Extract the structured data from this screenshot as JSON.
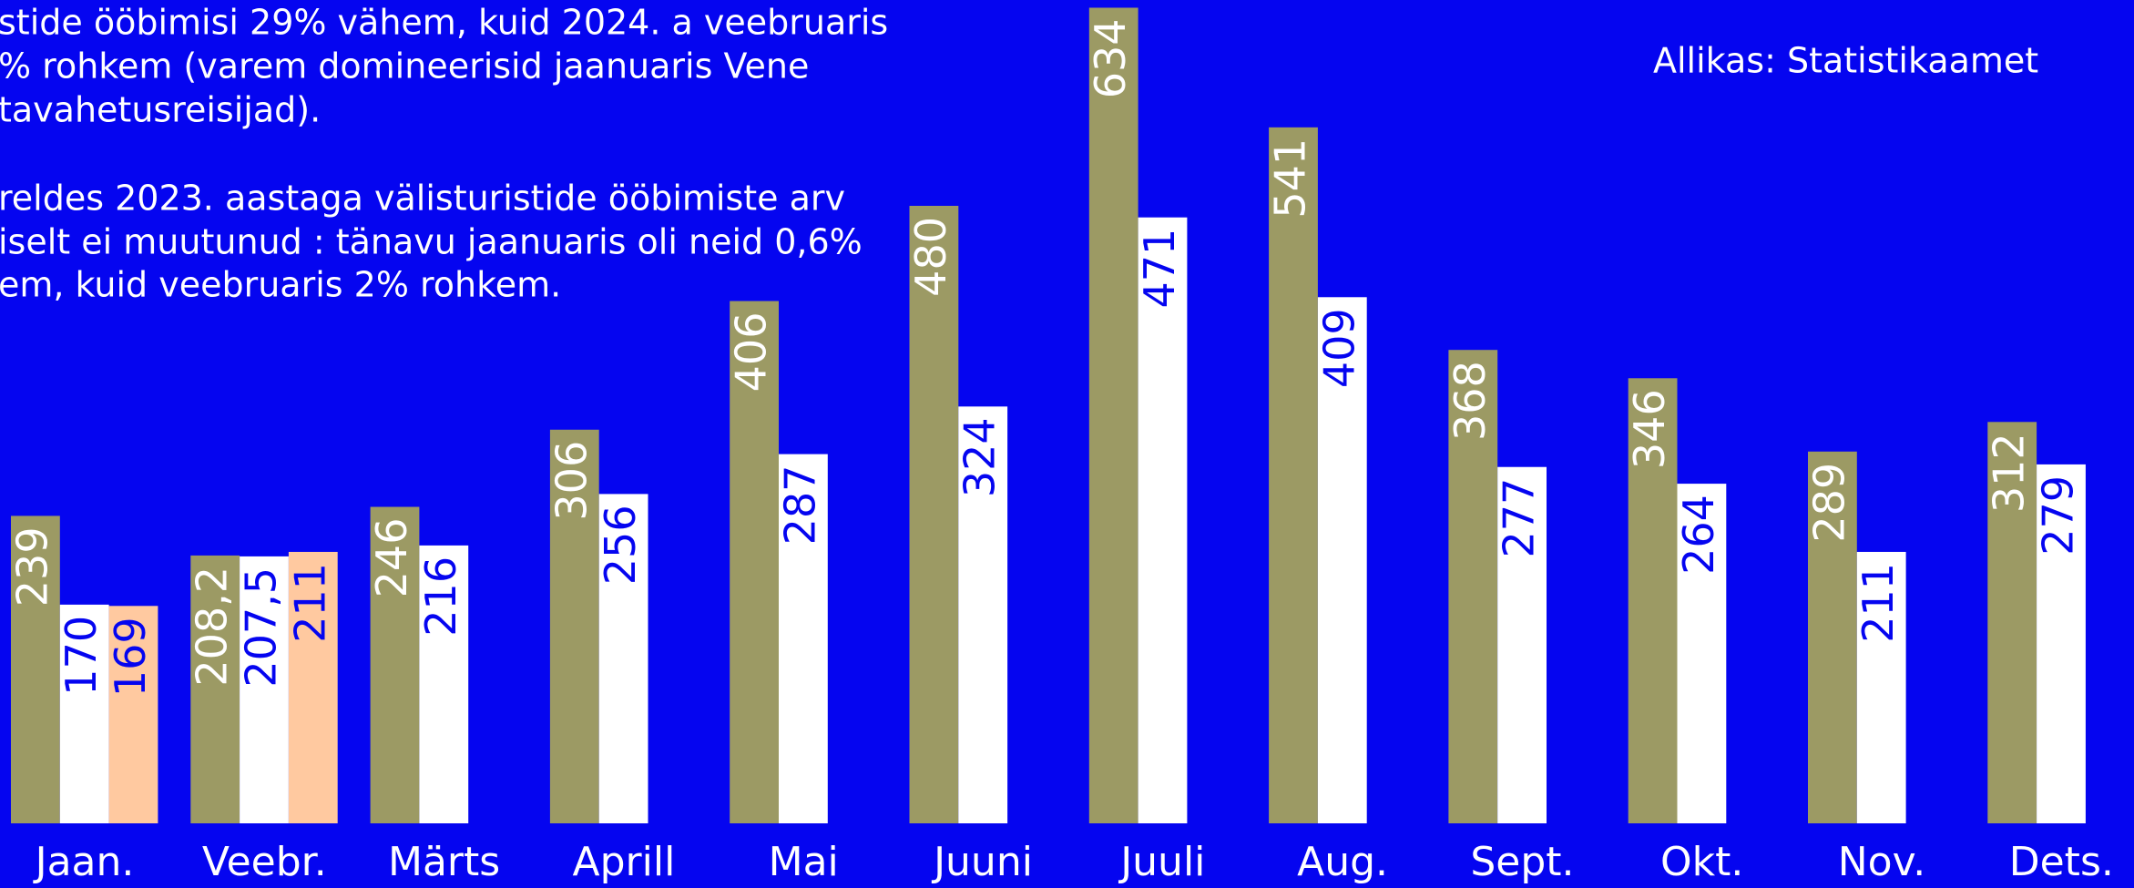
{
  "chart_data": {
    "type": "bar",
    "annotations": [
      "stide ööbimisi 29% vähem, kuid 2024. a veebruaris",
      "% rohkem (varem domineerisid jaanuaris Vene",
      "tavahetusreisijad).",
      "reldes 2023. aastaga välisturistide ööbimiste arv",
      "iselt ei muutunud : tänavu jaanuaris oli neid 0,6%",
      "em, kuid veebruaris 2% rohkem."
    ],
    "source": "Allikas: Statistikaamet",
    "categories": [
      "Jaan.",
      "Veebr.",
      "Märts",
      "Aprill",
      "Mai",
      "Juuni",
      "Juuli",
      "Aug.",
      "Sept.",
      "Okt.",
      "Nov.",
      "Dets."
    ],
    "series": [
      {
        "color": "#9c9a64",
        "label_color": "#ffffff",
        "values": [
          239,
          208.2,
          246,
          306,
          406,
          480,
          634,
          541,
          368,
          346,
          289,
          312
        ],
        "value_labels": [
          "239",
          "208,2",
          "246",
          "306",
          "406",
          "480",
          "634",
          "541",
          "368",
          "346",
          "289",
          "312"
        ]
      },
      {
        "color": "#ffffff",
        "label_color": "#0505f0",
        "values": [
          170,
          207.5,
          216,
          256,
          287,
          324,
          471,
          409,
          277,
          264,
          211,
          279
        ],
        "value_labels": [
          "170",
          "207,5",
          "216",
          "256",
          "287",
          "324",
          "471",
          "409",
          "277",
          "264",
          "211",
          "279"
        ]
      },
      {
        "color": "#ffc9a0",
        "label_color": "#0505f0",
        "values": [
          169,
          211,
          null,
          null,
          null,
          null,
          null,
          null,
          null,
          null,
          null,
          null
        ],
        "value_labels": [
          "169",
          "211",
          null,
          null,
          null,
          null,
          null,
          null,
          null,
          null,
          null,
          null
        ]
      }
    ],
    "ylim": [
      0,
      640
    ],
    "background": "#0505f0"
  }
}
